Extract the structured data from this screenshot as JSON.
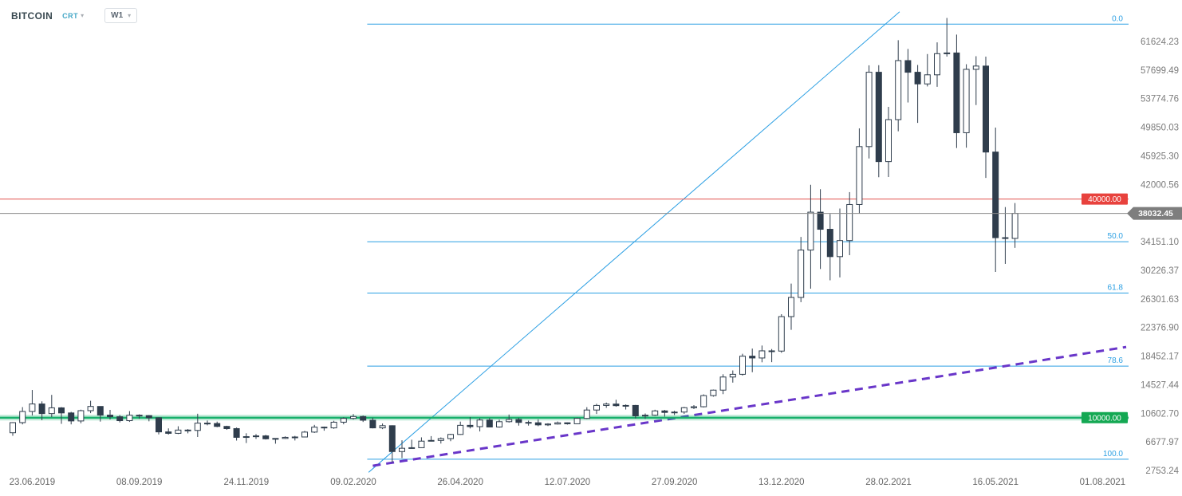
{
  "header": {
    "symbol": "BITCOIN",
    "chart_type": "CRT",
    "timeframe": "W1"
  },
  "icons": {
    "chevron_down": "▾"
  },
  "chart_data": {
    "type": "candlestick",
    "title": "BITCOIN W1",
    "last_price": 38032.45,
    "y_axis_labels": [
      "61624.23",
      "57699.49",
      "53774.76",
      "49850.03",
      "45925.30",
      "42000.56",
      "34151.10",
      "30226.37",
      "26301.63",
      "22376.90",
      "18452.17",
      "14527.44",
      "10602.70",
      "6677.97",
      "2753.24"
    ],
    "x_axis_labels": [
      "23.06.2019",
      "08.09.2019",
      "24.11.2019",
      "09.02.2020",
      "26.04.2020",
      "12.07.2020",
      "27.09.2020",
      "13.12.2020",
      "28.02.2021",
      "16.05.2021",
      "01.08.2021"
    ],
    "colors": {
      "bull": "#ffffff",
      "bear": "#2f3d4c",
      "border": "#2f3d4c",
      "axis_text": "#7b7b7b",
      "time_text": "#666666"
    },
    "price_lines": [
      {
        "name": "resistance-line",
        "price": 40000.0,
        "label": "40000.00",
        "line_color": "#e0514d",
        "badge_color": "#e8423d"
      },
      {
        "name": "support-line",
        "price": 10000.0,
        "label": "10000.00",
        "line_color": "#17b06b",
        "badge_color": "#14a853"
      }
    ],
    "last_price_line": {
      "price": 38032.45,
      "label": "38032.45",
      "line_color": "#8a8a8a",
      "badge_color": "#7e7e7e"
    },
    "fibonacci": {
      "color": "#2b9fe3",
      "start_date": "2020-02-19",
      "levels": [
        {
          "label": "0.0",
          "price": 64000
        },
        {
          "label": "50.0",
          "price": 34150
        },
        {
          "label": "61.8",
          "price": 27103
        },
        {
          "label": "78.6",
          "price": 17070
        },
        {
          "label": "100.0",
          "price": 4300
        }
      ]
    },
    "trend_lines": [
      {
        "name": "bullish-trendline",
        "style": "solid",
        "color": "#2b9fe3",
        "width": 1,
        "from": {
          "date": "2020-02-20",
          "price": 2500
        },
        "to": {
          "date": "2021-03-08",
          "price": 65700
        }
      },
      {
        "name": "long-term-support-trendline",
        "style": "dashed",
        "color": "#6936c9",
        "width": 3,
        "from": {
          "date": "2020-02-23",
          "price": 3400
        },
        "to": {
          "date": "2021-08-18",
          "price": 19700
        }
      }
    ],
    "candles": [
      [
        "2019-06-09",
        7930,
        9390,
        7510,
        9320
      ],
      [
        "2019-06-16",
        9320,
        11450,
        9080,
        10850
      ],
      [
        "2019-06-23",
        10850,
        13800,
        10300,
        11880
      ],
      [
        "2019-06-30",
        11880,
        12240,
        9650,
        10560
      ],
      [
        "2019-07-07",
        10560,
        13130,
        10080,
        11350
      ],
      [
        "2019-07-14",
        11350,
        11450,
        9150,
        10650
      ],
      [
        "2019-07-21",
        10650,
        10800,
        9080,
        9550
      ],
      [
        "2019-07-28",
        9550,
        11100,
        9230,
        10960
      ],
      [
        "2019-08-04",
        10960,
        12320,
        10620,
        11540
      ],
      [
        "2019-08-11",
        11540,
        11560,
        9460,
        10350
      ],
      [
        "2019-08-18",
        10350,
        11070,
        9750,
        10130
      ],
      [
        "2019-08-25",
        10130,
        10370,
        9350,
        9590
      ],
      [
        "2019-09-01",
        9590,
        10900,
        9420,
        10340
      ],
      [
        "2019-09-08",
        10340,
        10460,
        9850,
        10280
      ],
      [
        "2019-09-15",
        10280,
        10350,
        9500,
        9990
      ],
      [
        "2019-09-22",
        9990,
        10050,
        7700,
        8050
      ],
      [
        "2019-09-29",
        8050,
        8530,
        7680,
        7850
      ],
      [
        "2019-10-06",
        7850,
        8820,
        7750,
        8300
      ],
      [
        "2019-10-13",
        8300,
        8430,
        7850,
        8250
      ],
      [
        "2019-10-20",
        8250,
        10540,
        7350,
        9250
      ],
      [
        "2019-10-27",
        9250,
        9600,
        8950,
        9200
      ],
      [
        "2019-11-03",
        9200,
        9460,
        8690,
        8800
      ],
      [
        "2019-11-10",
        8800,
        8890,
        8330,
        8500
      ],
      [
        "2019-11-17",
        8500,
        8650,
        6860,
        7300
      ],
      [
        "2019-11-24",
        7300,
        7860,
        6520,
        7400
      ],
      [
        "2019-12-01",
        7400,
        7750,
        7090,
        7500
      ],
      [
        "2019-12-08",
        7500,
        7640,
        7000,
        7100
      ],
      [
        "2019-12-15",
        7100,
        7160,
        6430,
        7150
      ],
      [
        "2019-12-22",
        7150,
        7440,
        7080,
        7300
      ],
      [
        "2019-12-29",
        7300,
        7500,
        6870,
        7350
      ],
      [
        "2020-01-05",
        7350,
        8190,
        7320,
        8020
      ],
      [
        "2020-01-12",
        8020,
        9010,
        7900,
        8700
      ],
      [
        "2020-01-19",
        8700,
        8780,
        8210,
        8600
      ],
      [
        "2020-01-26",
        8600,
        9570,
        8470,
        9380
      ],
      [
        "2020-02-02",
        9380,
        10050,
        9090,
        9900
      ],
      [
        "2020-02-09",
        9900,
        10500,
        9740,
        10160
      ],
      [
        "2020-02-16",
        10160,
        10290,
        9410,
        9650
      ],
      [
        "2020-02-23",
        9650,
        9990,
        8530,
        8600
      ],
      [
        "2020-03-01",
        8600,
        9200,
        8430,
        8900
      ],
      [
        "2020-03-08",
        8900,
        8950,
        3850,
        5350
      ],
      [
        "2020-03-15",
        5350,
        6900,
        4450,
        5800
      ],
      [
        "2020-03-22",
        5800,
        6980,
        5760,
        5880
      ],
      [
        "2020-03-29",
        5880,
        7300,
        5850,
        6780
      ],
      [
        "2020-04-05",
        6780,
        7470,
        6740,
        6880
      ],
      [
        "2020-04-12",
        6880,
        7290,
        6450,
        7130
      ],
      [
        "2020-04-19",
        7130,
        7780,
        6770,
        7700
      ],
      [
        "2020-04-26",
        7700,
        9460,
        7640,
        8950
      ],
      [
        "2020-05-03",
        8950,
        10070,
        8520,
        8770
      ],
      [
        "2020-05-10",
        8770,
        9940,
        8110,
        9680
      ],
      [
        "2020-05-17",
        9680,
        9950,
        8700,
        8720
      ],
      [
        "2020-05-24",
        8720,
        9740,
        8630,
        9450
      ],
      [
        "2020-05-31",
        9450,
        10430,
        9330,
        9750
      ],
      [
        "2020-06-07",
        9750,
        9990,
        8910,
        9350
      ],
      [
        "2020-06-14",
        9350,
        9590,
        8910,
        9300
      ],
      [
        "2020-06-21",
        9300,
        9780,
        8830,
        9010
      ],
      [
        "2020-06-28",
        9010,
        9230,
        8860,
        9130
      ],
      [
        "2020-07-05",
        9130,
        9470,
        9060,
        9300
      ],
      [
        "2020-07-12",
        9300,
        9340,
        9050,
        9160
      ],
      [
        "2020-07-19",
        9160,
        9990,
        9100,
        9900
      ],
      [
        "2020-07-26",
        9900,
        11440,
        9820,
        11050
      ],
      [
        "2020-08-02",
        11050,
        11900,
        10510,
        11680
      ],
      [
        "2020-08-09",
        11680,
        12070,
        11350,
        11870
      ],
      [
        "2020-08-16",
        11870,
        12460,
        11500,
        11650
      ],
      [
        "2020-08-23",
        11650,
        11820,
        11120,
        11680
      ],
      [
        "2020-08-30",
        11680,
        11750,
        9900,
        10250
      ],
      [
        "2020-09-06",
        10250,
        10580,
        9840,
        10340
      ],
      [
        "2020-09-13",
        10340,
        11090,
        10230,
        10930
      ],
      [
        "2020-09-20",
        10930,
        11070,
        10150,
        10720
      ],
      [
        "2020-09-27",
        10720,
        10950,
        10360,
        10770
      ],
      [
        "2020-10-04",
        10770,
        11480,
        10530,
        11370
      ],
      [
        "2020-10-11",
        11370,
        11720,
        11180,
        11500
      ],
      [
        "2020-10-18",
        11500,
        13200,
        11400,
        13030
      ],
      [
        "2020-10-25",
        13030,
        13860,
        12880,
        13780
      ],
      [
        "2020-11-01",
        13780,
        15960,
        13230,
        15580
      ],
      [
        "2020-11-08",
        15580,
        16480,
        14810,
        15950
      ],
      [
        "2020-11-15",
        15950,
        18770,
        15780,
        18440
      ],
      [
        "2020-11-22",
        18440,
        19480,
        16240,
        18190
      ],
      [
        "2020-11-29",
        18190,
        19900,
        17600,
        19170
      ],
      [
        "2020-12-06",
        19170,
        19420,
        17620,
        19140
      ],
      [
        "2020-12-13",
        19140,
        24200,
        18900,
        23870
      ],
      [
        "2020-12-20",
        23870,
        28400,
        22050,
        26500
      ],
      [
        "2020-12-27",
        26500,
        34800,
        25850,
        33000
      ],
      [
        "2021-01-03",
        33000,
        41950,
        27700,
        38200
      ],
      [
        "2021-01-10",
        38200,
        41350,
        30400,
        35850
      ],
      [
        "2021-01-17",
        35850,
        37950,
        28850,
        32100
      ],
      [
        "2021-01-24",
        32100,
        38700,
        29250,
        34300
      ],
      [
        "2021-01-31",
        34300,
        40950,
        32300,
        39250
      ],
      [
        "2021-02-07",
        39250,
        49700,
        37990,
        47200
      ],
      [
        "2021-02-14",
        47200,
        58350,
        45570,
        57400
      ],
      [
        "2021-02-21",
        57400,
        58370,
        43000,
        45140
      ],
      [
        "2021-02-28",
        45140,
        52650,
        43020,
        50900
      ],
      [
        "2021-03-07",
        50900,
        61800,
        49300,
        59000
      ],
      [
        "2021-03-14",
        59000,
        60600,
        53250,
        57400
      ],
      [
        "2021-03-21",
        57400,
        58400,
        50450,
        55800
      ],
      [
        "2021-03-28",
        55800,
        59900,
        55450,
        57050
      ],
      [
        "2021-04-04",
        57050,
        61500,
        55400,
        59950
      ],
      [
        "2021-04-11",
        59950,
        64850,
        59550,
        60050
      ],
      [
        "2021-04-18",
        60050,
        62570,
        47000,
        49100
      ],
      [
        "2021-04-25",
        49100,
        58500,
        47050,
        57800
      ],
      [
        "2021-05-02",
        57800,
        59600,
        52900,
        58250
      ],
      [
        "2021-05-09",
        58250,
        59550,
        42900,
        46450
      ],
      [
        "2021-05-16",
        46450,
        49800,
        30000,
        34700
      ],
      [
        "2021-05-23",
        34700,
        38900,
        31100,
        34600
      ],
      [
        "2021-05-30",
        34600,
        39450,
        33300,
        38032.45
      ]
    ]
  }
}
